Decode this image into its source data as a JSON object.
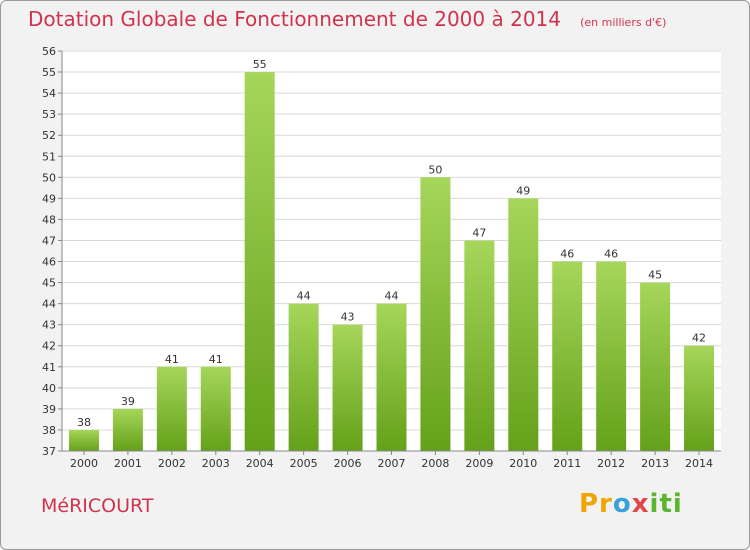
{
  "header": {
    "title": "Dotation Globale de Fonctionnement de 2000 à 2014",
    "subtitle": "(en milliers d'€)"
  },
  "footer": {
    "commune": "MéRICOURT",
    "logo": "Proxiti"
  },
  "colors": {
    "title": "#d2334c",
    "bar_light": "#a6d65a",
    "bar_dark": "#64a11a",
    "grid": "#d9d9d9",
    "plot_bg": "#ffffff"
  },
  "chart_data": {
    "type": "bar",
    "title": "Dotation Globale de Fonctionnement de 2000 à 2014",
    "subtitle": "(en milliers d'€)",
    "categories": [
      "2000",
      "2001",
      "2002",
      "2003",
      "2004",
      "2005",
      "2006",
      "2007",
      "2008",
      "2009",
      "2010",
      "2011",
      "2012",
      "2013",
      "2014"
    ],
    "values": [
      38,
      39,
      41,
      41,
      55,
      44,
      43,
      44,
      50,
      47,
      49,
      46,
      46,
      45,
      42
    ],
    "ylim": [
      37,
      56
    ],
    "yticks": [
      37,
      38,
      39,
      40,
      41,
      42,
      43,
      44,
      45,
      46,
      47,
      48,
      49,
      50,
      51,
      52,
      53,
      54,
      55,
      56
    ],
    "grid": true,
    "data_labels": true,
    "legend": "none"
  }
}
